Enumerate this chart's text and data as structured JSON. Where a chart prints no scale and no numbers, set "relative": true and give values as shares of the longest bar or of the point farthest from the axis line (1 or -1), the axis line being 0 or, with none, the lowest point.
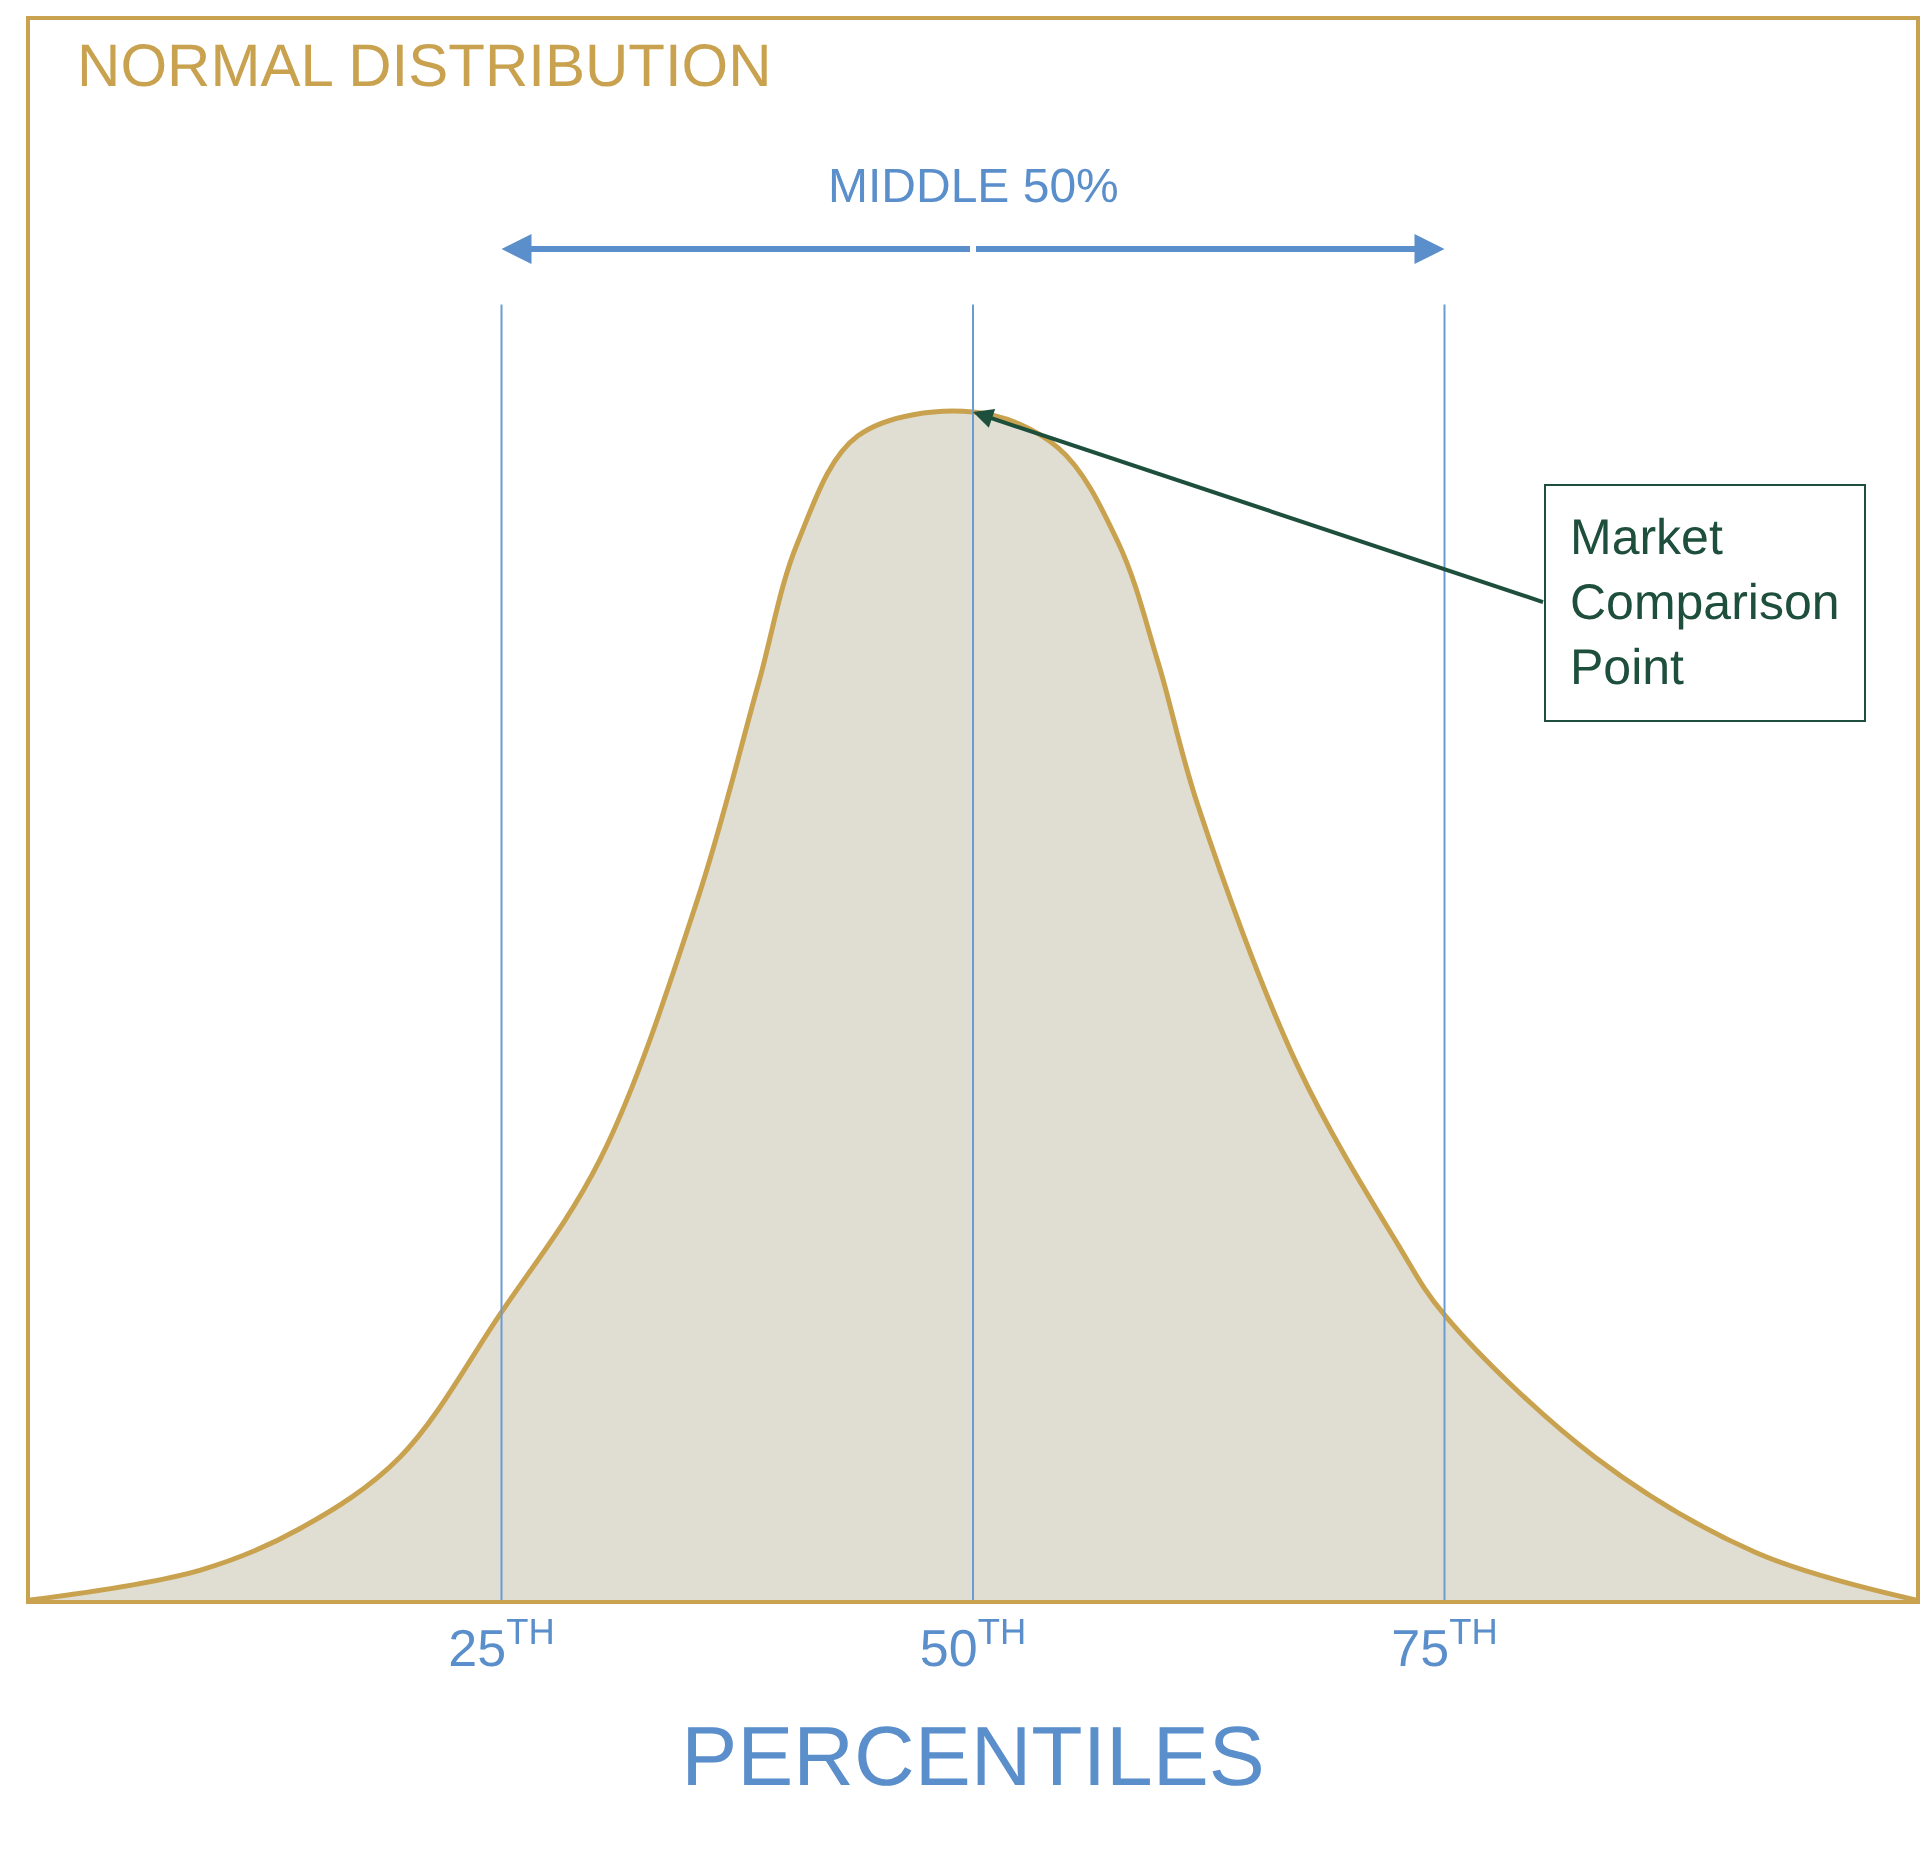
{
  "chart_data": {
    "type": "area",
    "title": "NORMAL DISTRIBUTION",
    "xlabel": "PERCENTILES",
    "relative": true,
    "x": [
      0,
      9,
      14.3,
      19.6,
      24.9,
      30.2,
      35.4,
      38.6,
      40.7,
      43.9,
      50,
      54.5,
      57.7,
      59.8,
      61.9,
      67.2,
      72.5,
      75,
      83,
      91.5,
      100
    ],
    "series": [
      {
        "color": "#c9a24f",
        "values": [
          0,
          0.025,
          0.06,
          0.12,
          0.24,
          0.37,
          0.59,
          0.77,
          0.89,
          0.98,
          1,
          0.97,
          0.89,
          0.79,
          0.67,
          0.45,
          0.3,
          0.24,
          0.12,
          0.04,
          0
        ]
      }
    ],
    "xlim": [
      0,
      100
    ],
    "xticks": [
      {
        "value": 25,
        "label": "25$^{TH}$"
      },
      {
        "value": 50,
        "label": "50$^{TH}$"
      },
      {
        "value": 75,
        "label": "75$^{TH}$"
      }
    ],
    "ref_lines": [
      {
        "axis": "x",
        "value": 25,
        "color": "#6a9bd1"
      },
      {
        "axis": "x",
        "value": 50,
        "color": "#6a9bd1"
      },
      {
        "axis": "x",
        "value": 75,
        "color": "#6a9bd1"
      }
    ],
    "annotations": [
      "MIDDLE 50%",
      {
        "text": "Market Comparison Point",
        "x": 50,
        "y": 1
      }
    ],
    "marker": "none"
  }
}
